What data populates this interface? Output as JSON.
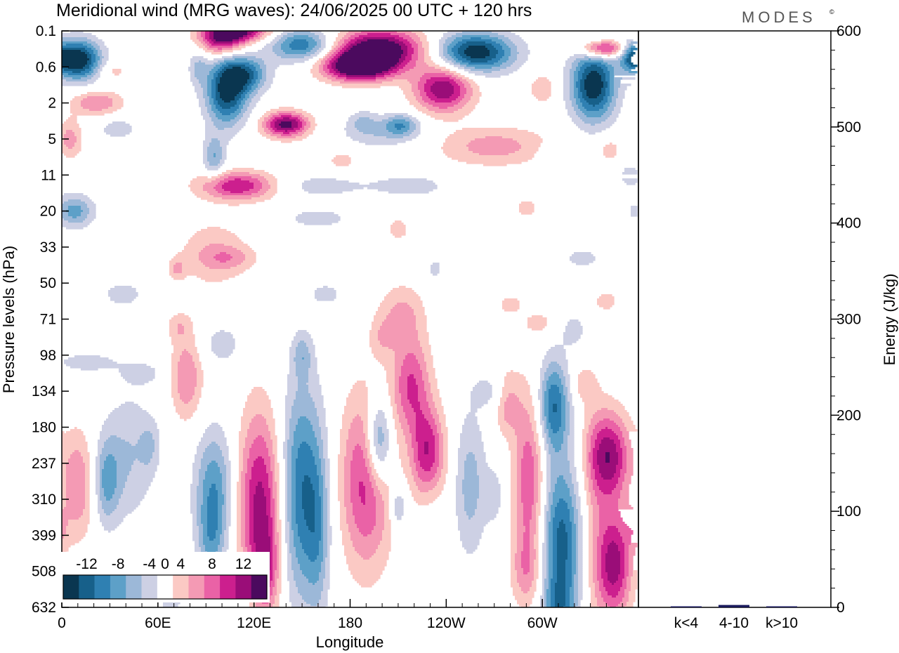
{
  "title": "Meridional wind (MRG waves):  24/06/2025  00 UTC  + 120 hrs",
  "logo": "MODES",
  "logo_mark": "©",
  "chart_data": [
    {
      "type": "heatmap",
      "xlabel": "Longitude",
      "ylabel": "Pressure levels (hPa)",
      "x_ticks": [
        "0",
        "60E",
        "120E",
        "180",
        "120W",
        "60W"
      ],
      "x_tick_degrees": [
        0,
        60,
        120,
        180,
        240,
        300
      ],
      "xlim": [
        0,
        360
      ],
      "y_ticks": [
        "0.1",
        "0.6",
        "2",
        "5",
        "11",
        "20",
        "33",
        "50",
        "71",
        "98",
        "134",
        "180",
        "237",
        "310",
        "399",
        "508",
        "632"
      ],
      "colorbar": {
        "labels": [
          "-12",
          "-8",
          "-4",
          "0",
          "4",
          "8",
          "12"
        ],
        "levels": [
          -14,
          -12,
          -10,
          -8,
          -6,
          -4,
          -2,
          2,
          4,
          6,
          8,
          10,
          12,
          14
        ],
        "colors": [
          "#0a3650",
          "#17608a",
          "#2f80b2",
          "#5da0c8",
          "#9cb8d8",
          "#cdd0e4",
          "#ffffff",
          "#fbc9c4",
          "#f49ab4",
          "#ea62a6",
          "#cc1f8e",
          "#9a0d78",
          "#4b0a5e"
        ]
      },
      "features": [
        {
          "lon": 10,
          "lev": 0.8,
          "w": 14,
          "h": 0.55,
          "v": -15
        },
        {
          "lon": 22,
          "lev": 2.0,
          "w": 16,
          "h": 0.35,
          "v": 6
        },
        {
          "lon": 5,
          "lev": 3.0,
          "w": 8,
          "h": 0.55,
          "v": 5
        },
        {
          "lon": 8,
          "lev": 5.0,
          "w": 12,
          "h": 0.45,
          "v": -7
        },
        {
          "lon": 32,
          "lev": 1.1,
          "w": 10,
          "h": 0.25,
          "v": 3
        },
        {
          "lon": 35,
          "lev": 2.7,
          "w": 14,
          "h": 0.35,
          "v": -3
        },
        {
          "lon": 15,
          "lev": 9.2,
          "w": 22,
          "h": 0.3,
          "v": -3
        },
        {
          "lon": 50,
          "lev": 9.5,
          "w": 12,
          "h": 0.3,
          "v": -3
        },
        {
          "lon": 95,
          "lev": 6.2,
          "w": 22,
          "h": 0.9,
          "v": 4
        },
        {
          "lon": 110,
          "lev": 4.3,
          "w": 24,
          "h": 0.4,
          "v": 10
        },
        {
          "lon": 140,
          "lev": 2.6,
          "w": 14,
          "h": 0.35,
          "v": 13
        },
        {
          "lon": 103,
          "lev": 1.7,
          "w": 13,
          "h": 0.9,
          "v": -13
        },
        {
          "lon": 115,
          "lev": 1.2,
          "w": 14,
          "h": 0.5,
          "v": -9
        },
        {
          "lon": 95,
          "lev": 3.5,
          "w": 7,
          "h": 0.6,
          "v": -6
        },
        {
          "lon": 85,
          "lev": 1.0,
          "w": 6,
          "h": 0.5,
          "v": -4
        },
        {
          "lon": 100,
          "lev": 0.3,
          "w": 14,
          "h": 0.4,
          "v": 10
        },
        {
          "lon": 110,
          "lev": 0.0,
          "w": 20,
          "h": 0.3,
          "v": 12
        },
        {
          "lon": 150,
          "lev": 0.4,
          "w": 20,
          "h": 0.45,
          "v": -10
        },
        {
          "lon": 185,
          "lev": 1.0,
          "w": 22,
          "h": 0.4,
          "v": 15
        },
        {
          "lon": 198,
          "lev": 0.5,
          "w": 28,
          "h": 0.55,
          "v": 15
        },
        {
          "lon": 238,
          "lev": 1.6,
          "w": 18,
          "h": 0.65,
          "v": 12
        },
        {
          "lon": 258,
          "lev": 0.6,
          "w": 24,
          "h": 0.55,
          "v": -14
        },
        {
          "lon": 270,
          "lev": 3.2,
          "w": 36,
          "h": 0.55,
          "v": 5
        },
        {
          "lon": 200,
          "lev": 2.8,
          "w": 26,
          "h": 0.45,
          "v": -4
        },
        {
          "lon": 212,
          "lev": 2.6,
          "w": 10,
          "h": 0.3,
          "v": -6
        },
        {
          "lon": 160,
          "lev": 4.3,
          "w": 30,
          "h": 0.35,
          "v": -3
        },
        {
          "lon": 218,
          "lev": 4.3,
          "w": 26,
          "h": 0.35,
          "v": -3
        },
        {
          "lon": 175,
          "lev": 3.6,
          "w": 10,
          "h": 0.3,
          "v": 3
        },
        {
          "lon": 188,
          "lev": 2.5,
          "w": 8,
          "h": 0.3,
          "v": -3
        },
        {
          "lon": 338,
          "lev": 0.5,
          "w": 14,
          "h": 0.25,
          "v": 12
        },
        {
          "lon": 332,
          "lev": 1.5,
          "w": 14,
          "h": 1.0,
          "v": -14
        },
        {
          "lon": 356,
          "lev": 0.7,
          "w": 8,
          "h": 0.4,
          "v": -8
        },
        {
          "lon": 300,
          "lev": 1.6,
          "w": 8,
          "h": 0.4,
          "v": 4
        },
        {
          "lon": 342,
          "lev": 3.3,
          "w": 8,
          "h": 0.4,
          "v": 3
        },
        {
          "lon": 310,
          "lev": 3.4,
          "w": 12,
          "h": 0.3,
          "v": -3
        },
        {
          "lon": 355,
          "lev": 4.0,
          "w": 8,
          "h": 0.4,
          "v": -3
        },
        {
          "lon": 160,
          "lev": 5.2,
          "w": 22,
          "h": 0.3,
          "v": -3
        },
        {
          "lon": 105,
          "lev": 6.3,
          "w": 16,
          "h": 0.3,
          "v": 3
        },
        {
          "lon": 165,
          "lev": 7.3,
          "w": 10,
          "h": 0.3,
          "v": -3
        },
        {
          "lon": 210,
          "lev": 5.5,
          "w": 8,
          "h": 0.35,
          "v": 3
        },
        {
          "lon": 290,
          "lev": 4.9,
          "w": 8,
          "h": 0.3,
          "v": 3
        },
        {
          "lon": 325,
          "lev": 6.3,
          "w": 12,
          "h": 0.3,
          "v": -3
        },
        {
          "lon": 212,
          "lev": 7.8,
          "w": 14,
          "h": 0.8,
          "v": 4
        },
        {
          "lon": 218,
          "lev": 9.8,
          "w": 12,
          "h": 1.4,
          "v": 8
        },
        {
          "lon": 229,
          "lev": 11.8,
          "w": 10,
          "h": 1.3,
          "v": 13
        },
        {
          "lon": 198,
          "lev": 11.4,
          "w": 8,
          "h": 1.2,
          "v": -10
        },
        {
          "lon": 210,
          "lev": 13.2,
          "w": 5,
          "h": 0.6,
          "v": -5
        },
        {
          "lon": 190,
          "lev": 12.5,
          "w": 16,
          "h": 2.4,
          "v": 9
        },
        {
          "lon": 200,
          "lev": 8.5,
          "w": 8,
          "h": 0.6,
          "v": 3
        },
        {
          "lon": 150,
          "lev": 12.8,
          "w": 14,
          "h": 3.0,
          "v": -10
        },
        {
          "lon": 160,
          "lev": 14.0,
          "w": 7,
          "h": 2.2,
          "v": -4
        },
        {
          "lon": 150,
          "lev": 9.0,
          "w": 6,
          "h": 0.6,
          "v": -4
        },
        {
          "lon": 124,
          "lev": 13.2,
          "w": 14,
          "h": 2.6,
          "v": 11
        },
        {
          "lon": 128,
          "lev": 15.0,
          "w": 8,
          "h": 1.2,
          "v": 5
        },
        {
          "lon": 95,
          "lev": 12.8,
          "w": 12,
          "h": 1.7,
          "v": -8
        },
        {
          "lon": 93,
          "lev": 14.2,
          "w": 8,
          "h": 1.0,
          "v": -4
        },
        {
          "lon": 100,
          "lev": 8.7,
          "w": 14,
          "h": 0.6,
          "v": -3
        },
        {
          "lon": 78,
          "lev": 9.6,
          "w": 10,
          "h": 1.2,
          "v": 6
        },
        {
          "lon": 73,
          "lev": 8.2,
          "w": 8,
          "h": 0.4,
          "v": 3
        },
        {
          "lon": 42,
          "lev": 11.8,
          "w": 16,
          "h": 1.8,
          "v": -4
        },
        {
          "lon": 28,
          "lev": 12.5,
          "w": 8,
          "h": 1.2,
          "v": -6
        },
        {
          "lon": 10,
          "lev": 12.6,
          "w": 10,
          "h": 1.5,
          "v": 6
        },
        {
          "lon": 55,
          "lev": 11.5,
          "w": 6,
          "h": 0.7,
          "v": -3
        },
        {
          "lon": 38,
          "lev": 7.3,
          "w": 14,
          "h": 0.4,
          "v": -3
        },
        {
          "lon": 68,
          "lev": 15.8,
          "w": 8,
          "h": 0.8,
          "v": -3
        },
        {
          "lon": 110,
          "lev": 15.6,
          "w": 10,
          "h": 0.8,
          "v": -3
        },
        {
          "lon": 230,
          "lev": 12.2,
          "w": 8,
          "h": 1.5,
          "v": -4
        },
        {
          "lon": 255,
          "lev": 12.6,
          "w": 10,
          "h": 2.0,
          "v": -5
        },
        {
          "lon": 278,
          "lev": 10.3,
          "w": 8,
          "h": 0.9,
          "v": 5
        },
        {
          "lon": 292,
          "lev": 12.5,
          "w": 10,
          "h": 2.5,
          "v": 8
        },
        {
          "lon": 290,
          "lev": 15.0,
          "w": 10,
          "h": 1.0,
          "v": 4
        },
        {
          "lon": 268,
          "lev": 10.0,
          "w": 12,
          "h": 0.5,
          "v": -3
        },
        {
          "lon": 280,
          "lev": 7.6,
          "w": 8,
          "h": 0.3,
          "v": 3
        },
        {
          "lon": 270,
          "lev": 12.9,
          "w": 6,
          "h": 0.8,
          "v": -3
        },
        {
          "lon": 307,
          "lev": 10.4,
          "w": 10,
          "h": 1.3,
          "v": -10
        },
        {
          "lon": 312,
          "lev": 14.2,
          "w": 13,
          "h": 2.2,
          "v": -11
        },
        {
          "lon": 310,
          "lev": 16.0,
          "w": 10,
          "h": 0.8,
          "v": -5
        },
        {
          "lon": 342,
          "lev": 11.8,
          "w": 13,
          "h": 1.2,
          "v": 11
        },
        {
          "lon": 345,
          "lev": 14.8,
          "w": 11,
          "h": 1.5,
          "v": 11
        },
        {
          "lon": 332,
          "lev": 13.5,
          "w": 10,
          "h": 3.5,
          "v": 3
        },
        {
          "lon": 325,
          "lev": 9.8,
          "w": 8,
          "h": 0.5,
          "v": 3
        },
        {
          "lon": 340,
          "lev": 7.5,
          "w": 8,
          "h": 0.3,
          "v": 3
        },
        {
          "lon": 358,
          "lev": 13.8,
          "w": 6,
          "h": 0.6,
          "v": 3
        },
        {
          "lon": 298,
          "lev": 8.1,
          "w": 10,
          "h": 0.3,
          "v": 3
        },
        {
          "lon": 320,
          "lev": 8.3,
          "w": 8,
          "h": 0.5,
          "v": -3
        },
        {
          "lon": 233,
          "lev": 6.6,
          "w": 5,
          "h": 0.3,
          "v": -3
        },
        {
          "lon": 72,
          "lev": 6.6,
          "w": 5,
          "h": 0.3,
          "v": 4
        }
      ]
    },
    {
      "type": "bar",
      "ylabel": "Energy (J/kg)",
      "categories": [
        "k<4",
        "4-10",
        "k>10"
      ],
      "values": [
        0.5,
        2.5,
        0.3
      ],
      "ylim": [
        0,
        600
      ],
      "y_ticks": [
        "0",
        "100",
        "200",
        "300",
        "400",
        "500",
        "600"
      ],
      "bar_color": "#1a1a5c"
    }
  ]
}
